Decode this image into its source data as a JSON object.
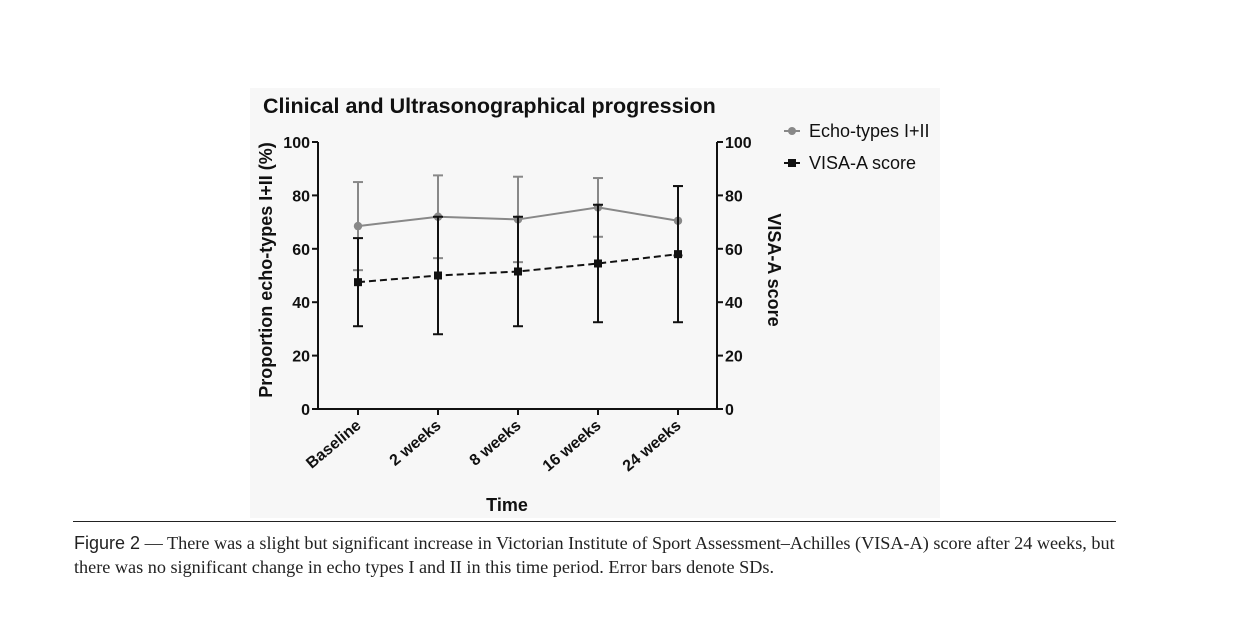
{
  "chart_data": {
    "type": "line",
    "title": "Clinical and Ultrasonographical progression",
    "xlabel": "Time",
    "ylabel_left": "Proportion echo-types I+II (%)",
    "ylabel_right": "VISA-A score",
    "categories": [
      "Baseline",
      "2 weeks",
      "8 weeks",
      "16 weeks",
      "24 weeks"
    ],
    "ylim_left": [
      0,
      100
    ],
    "ylim_right": [
      0,
      100
    ],
    "yticks_left": [
      0,
      20,
      40,
      60,
      80,
      100
    ],
    "yticks_right": [
      0,
      20,
      40,
      60,
      80,
      100
    ],
    "grid": false,
    "legend_position": "top-right",
    "series": [
      {
        "name": "Echo-types I+II",
        "axis": "left",
        "color": "#888888",
        "marker": "circle",
        "line_style": "solid",
        "values": [
          68.5,
          72,
          71,
          75.5,
          70.5
        ],
        "sd": [
          16.5,
          15.5,
          16,
          11,
          13
        ]
      },
      {
        "name": "VISA-A score",
        "axis": "right",
        "color": "#111111",
        "marker": "square",
        "line_style": "dashed",
        "values": [
          47.5,
          50,
          51.5,
          54.5,
          58
        ],
        "sd": [
          16.5,
          22,
          20.5,
          22,
          25.5
        ]
      }
    ]
  },
  "caption": {
    "label": "Figure 2",
    "text": " — There was a slight but significant increase in Victorian Institute of Sport Assessment–Achilles (VISA-A) score after 24 weeks, but there was no significant change in echo types I and II in this time period. Error bars denote SDs."
  }
}
